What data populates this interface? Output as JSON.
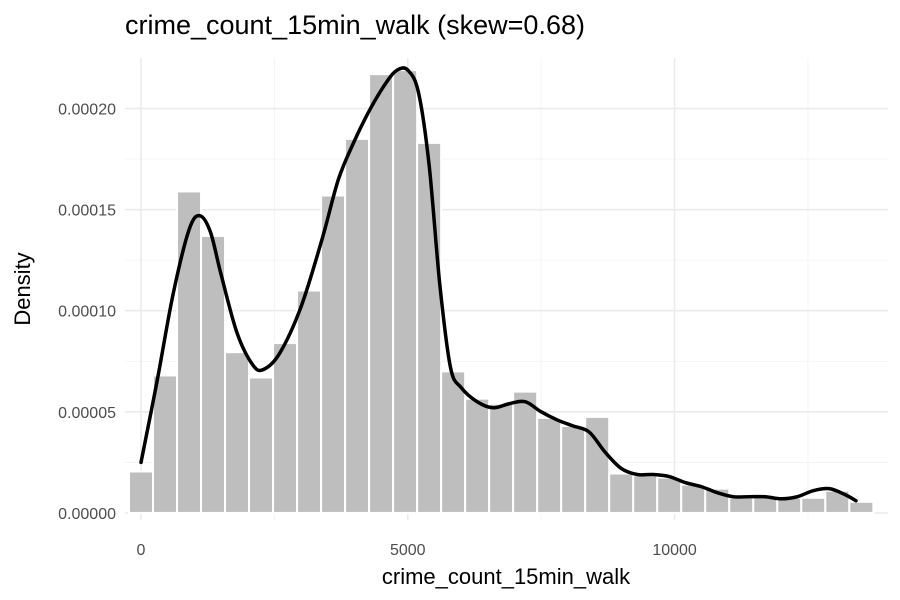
{
  "chart_data": {
    "type": "bar",
    "title": "crime_count_15min_walk (skew=0.68)",
    "xlabel": "crime_count_15min_walk",
    "ylabel": "Density",
    "xlim": [
      -300,
      14000
    ],
    "ylim": [
      -3.5e-06,
      0.000225
    ],
    "x_ticks": [
      0,
      5000,
      10000
    ],
    "x_tick_labels": [
      "0",
      "5000",
      "10000"
    ],
    "y_ticks": [
      0,
      5e-05,
      0.0001,
      0.00015,
      0.0002
    ],
    "y_tick_labels": [
      "0.00000",
      "0.00005",
      "0.00010",
      "0.00015",
      "0.00020"
    ],
    "grid": true,
    "bin_width": 450,
    "bins": [
      {
        "start": -225,
        "end": 225,
        "density": 2.05e-05
      },
      {
        "start": 225,
        "end": 675,
        "density": 6.8e-05
      },
      {
        "start": 675,
        "end": 1125,
        "density": 0.000159
      },
      {
        "start": 1125,
        "end": 1575,
        "density": 0.000137
      },
      {
        "start": 1575,
        "end": 2025,
        "density": 7.95e-05
      },
      {
        "start": 2025,
        "end": 2475,
        "density": 6.7e-05
      },
      {
        "start": 2475,
        "end": 2925,
        "density": 8.4e-05
      },
      {
        "start": 2925,
        "end": 3375,
        "density": 0.00011
      },
      {
        "start": 3375,
        "end": 3825,
        "density": 0.000157
      },
      {
        "start": 3825,
        "end": 4275,
        "density": 0.000185
      },
      {
        "start": 4275,
        "end": 4725,
        "density": 0.000217
      },
      {
        "start": 4725,
        "end": 5175,
        "density": 0.000219
      },
      {
        "start": 5175,
        "end": 5625,
        "density": 0.000183
      },
      {
        "start": 5625,
        "end": 6075,
        "density": 7e-05
      },
      {
        "start": 6075,
        "end": 6525,
        "density": 5.65e-05
      },
      {
        "start": 6525,
        "end": 6975,
        "density": 5.4e-05
      },
      {
        "start": 6975,
        "end": 7425,
        "density": 6e-05
      },
      {
        "start": 7425,
        "end": 7875,
        "density": 4.7e-05
      },
      {
        "start": 7875,
        "end": 8325,
        "density": 4.3e-05
      },
      {
        "start": 8325,
        "end": 8775,
        "density": 4.75e-05
      },
      {
        "start": 8775,
        "end": 9225,
        "density": 1.95e-05
      },
      {
        "start": 9225,
        "end": 9675,
        "density": 1.85e-05
      },
      {
        "start": 9675,
        "end": 10125,
        "density": 1.75e-05
      },
      {
        "start": 10125,
        "end": 10575,
        "density": 1.4e-05
      },
      {
        "start": 10575,
        "end": 11025,
        "density": 1.2e-05
      },
      {
        "start": 11025,
        "end": 11475,
        "density": 7.5e-06
      },
      {
        "start": 11475,
        "end": 11925,
        "density": 8.5e-06
      },
      {
        "start": 11925,
        "end": 12375,
        "density": 7.5e-06
      },
      {
        "start": 12375,
        "end": 12825,
        "density": 7.5e-06
      },
      {
        "start": 12825,
        "end": 13275,
        "density": 1.1e-05
      },
      {
        "start": 13275,
        "end": 13725,
        "density": 5.5e-06
      }
    ],
    "density_curve": {
      "x": [
        0,
        300,
        600,
        900,
        1100,
        1300,
        1500,
        1800,
        2100,
        2300,
        2600,
        3000,
        3400,
        3700,
        4000,
        4300,
        4600,
        4800,
        5000,
        5200,
        5400,
        5600,
        5800,
        6000,
        6300,
        6600,
        6900,
        7200,
        7500,
        7800,
        8100,
        8400,
        8700,
        9000,
        9300,
        9600,
        9900,
        10200,
        10500,
        10800,
        11100,
        11400,
        11700,
        12000,
        12300,
        12600,
        12900,
        13200,
        13400
      ],
      "y": [
        2.5e-05,
        6.5e-05,
        0.000108,
        0.00014,
        0.000147,
        0.000139,
        0.000118,
        8.9e-05,
        7.3e-05,
        7.1e-05,
        7.9e-05,
        0.000102,
        0.000136,
        0.000165,
        0.000184,
        0.0002,
        0.000213,
        0.000219,
        0.000219,
        0.000208,
        0.000172,
        0.000113,
        7.2e-05,
        6.2e-05,
        5.5e-05,
        5.2e-05,
        5.4e-05,
        5.5e-05,
        5e-05,
        4.6e-05,
        4.3e-05,
        4e-05,
        3e-05,
        2.2e-05,
        1.9e-05,
        1.9e-05,
        1.8e-05,
        1.5e-05,
        1.3e-05,
        1e-05,
        8e-06,
        8e-06,
        8e-06,
        7e-06,
        8e-06,
        1.1e-05,
        1.2e-05,
        9e-06,
        6e-06
      ]
    },
    "colors": {
      "bar_fill": "#bebebe",
      "bar_outline": "#ffffff",
      "density_line": "#000000",
      "grid": "#ebebeb"
    }
  }
}
